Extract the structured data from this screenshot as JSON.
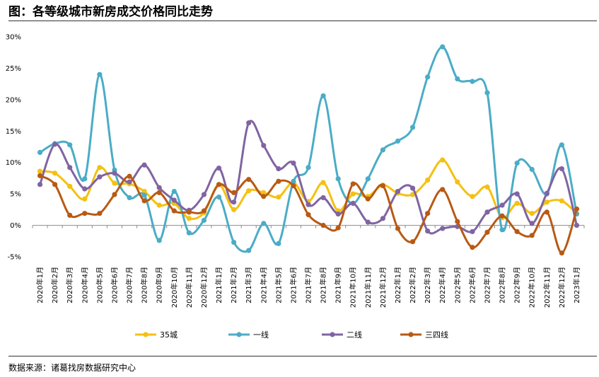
{
  "header": {
    "title": "图：各等级城市新房成交价格同比走势"
  },
  "footer": {
    "source": "数据来源：诸葛找房数据研究中心"
  },
  "chart_data": {
    "type": "line",
    "title": "各等级城市新房成交价格同比走势",
    "xlabel": "",
    "ylabel": "",
    "ylim": [
      -5,
      30
    ],
    "yticks": [
      -5,
      0,
      5,
      10,
      15,
      20,
      25,
      30
    ],
    "ytick_labels": [
      "-5%",
      "0%",
      "5%",
      "10%",
      "15%",
      "20%",
      "25%",
      "30%"
    ],
    "categories": [
      "2020年1月",
      "2020年2月",
      "2020年3月",
      "2020年4月",
      "2020年5月",
      "2020年6月",
      "2020年7月",
      "2020年8月",
      "2020年9月",
      "2020年10月",
      "2020年11月",
      "2020年12月",
      "2021年1月",
      "2021年2月",
      "2021年3月",
      "2021年4月",
      "2021年5月",
      "2021年6月",
      "2021年7月",
      "2021年8月",
      "2021年9月",
      "2021年10月",
      "2021年11月",
      "2021年12月",
      "2022年1月",
      "2022年2月",
      "2022年3月",
      "2022年4月",
      "2022年5月",
      "2022年6月",
      "2022年7月",
      "2022年8月",
      "2022年9月",
      "2022年10月",
      "2022年11月",
      "2022年12月",
      "2023年1月"
    ],
    "legend_position": "bottom",
    "series": [
      {
        "name": "35城",
        "color": "#F5C010",
        "values": [
          8.6,
          8.3,
          6.2,
          4.2,
          9.2,
          6.7,
          6.6,
          5.4,
          3.2,
          3.5,
          1.1,
          2.0,
          6.5,
          2.5,
          5.5,
          5.2,
          4.5,
          6.8,
          3.8,
          6.8,
          2.3,
          5.0,
          4.6,
          6.4,
          5.1,
          4.9,
          7.2,
          10.4,
          6.9,
          4.6,
          6.1,
          1.2,
          3.5,
          1.9,
          3.7,
          3.9,
          1.9
        ]
      },
      {
        "name": "一线",
        "color": "#4BACC6",
        "values": [
          11.6,
          13.0,
          12.8,
          7.4,
          24.0,
          8.8,
          4.4,
          4.8,
          -2.4,
          5.4,
          -1.2,
          0.8,
          4.5,
          -2.7,
          -4.0,
          0.3,
          -2.9,
          7.0,
          9.2,
          20.6,
          7.4,
          3.5,
          7.4,
          12.0,
          13.4,
          15.6,
          23.6,
          28.4,
          23.3,
          22.9,
          21.1,
          -0.7,
          9.9,
          8.9,
          5.0,
          12.8,
          1.8
        ]
      },
      {
        "name": "二线",
        "color": "#8064A2",
        "values": [
          6.5,
          12.9,
          9.2,
          5.8,
          7.7,
          8.3,
          6.9,
          9.6,
          6.0,
          4.0,
          2.4,
          4.9,
          9.1,
          3.7,
          16.3,
          12.7,
          9.0,
          9.9,
          3.3,
          4.4,
          1.8,
          3.5,
          0.5,
          1.1,
          5.4,
          5.9,
          -0.9,
          -0.5,
          -0.2,
          -1.0,
          2.1,
          3.2,
          5.0,
          0.3,
          5.1,
          9.0,
          0.0
        ]
      },
      {
        "name": "三四线",
        "color": "#B85A14",
        "values": [
          7.9,
          6.5,
          1.6,
          1.9,
          1.9,
          4.9,
          7.8,
          3.9,
          5.2,
          2.3,
          2.1,
          2.3,
          6.5,
          5.2,
          7.3,
          4.6,
          7.0,
          6.3,
          1.7,
          0.0,
          -0.4,
          6.6,
          4.2,
          6.3,
          -0.5,
          -2.6,
          1.9,
          5.7,
          0.6,
          -3.5,
          -1.1,
          1.5,
          -1.0,
          -1.6,
          2.1,
          -4.4,
          2.6
        ]
      }
    ]
  }
}
